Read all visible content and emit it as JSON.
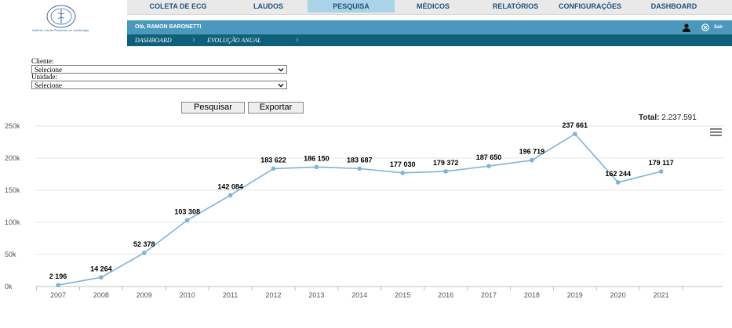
{
  "header": {
    "logo_text": "Instituto Cardio Pulmonar de Cardiologia",
    "nav": [
      {
        "label": "COLETA DE ECG",
        "active": false
      },
      {
        "label": "LAUDOS",
        "active": false
      },
      {
        "label": "PESQUISA",
        "active": true
      },
      {
        "label": "MÉDICOS",
        "active": false
      },
      {
        "label": "RELATÓRIOS",
        "active": false
      },
      {
        "label": "CONFIGURAÇÕES",
        "active": false
      },
      {
        "label": "DASHBOARD",
        "active": false
      }
    ],
    "greeting": "Olá, RAMON BARONETTI",
    "logout_label": "Sair",
    "user_icon": "user-icon",
    "logout_icon": "logout-icon"
  },
  "breadcrumb": [
    "DASHBOARD",
    "EVOLUÇÃO ANUAL"
  ],
  "filters": {
    "cliente_label": "Cliente:",
    "cliente_value": "Selecione",
    "unidade_label": "Unidade:",
    "unidade_value": "Selecione"
  },
  "buttons": {
    "search": "Pesquisar",
    "export": "Exportar"
  },
  "total": {
    "label": "Total:",
    "value": "2.237.591"
  },
  "colors": {
    "nav_bg": "#e9e9e9",
    "nav_text": "#21527c",
    "nav_active": "#a9d3e8",
    "userbar": "#4a98be",
    "crumbbar": "#0e5f7a",
    "line": "#7cb5d8"
  },
  "chart_data": {
    "type": "line",
    "categories": [
      "2007",
      "2008",
      "2009",
      "2010",
      "2011",
      "2012",
      "2013",
      "2014",
      "2015",
      "2016",
      "2017",
      "2018",
      "2019",
      "2020",
      "2021"
    ],
    "values": [
      2196,
      14264,
      52378,
      103308,
      142084,
      183622,
      186150,
      183687,
      177030,
      179372,
      187650,
      196719,
      237661,
      162244,
      179117
    ],
    "data_labels": [
      "2 196",
      "14 264",
      "52 378",
      "103 308",
      "142 084",
      "183 622",
      "186 150",
      "183 687",
      "177 030",
      "179 372",
      "187 650",
      "196 719",
      "237 661",
      "162 244",
      "179 117"
    ],
    "y_ticks": [
      "0k",
      "50k",
      "100k",
      "150k",
      "200k",
      "250k"
    ],
    "ylim": [
      0,
      250000
    ],
    "grid": true,
    "legend": false
  }
}
